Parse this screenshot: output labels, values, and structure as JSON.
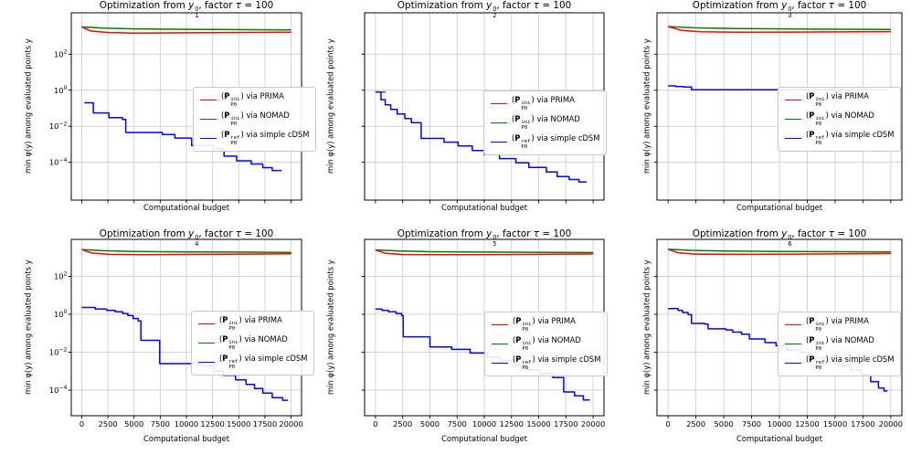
{
  "figure": {
    "legend": {
      "open": "(",
      "p": "P",
      "sub": "P0",
      "entries": [
        {
          "name": "PRIMA",
          "color": "#ff0000",
          "sup": "ini",
          "rest": ") via PRIMA"
        },
        {
          "name": "NOMAD",
          "color": "#007d00",
          "sup": "ini",
          "rest": ") via NOMAD"
        },
        {
          "name": "simple cDSM",
          "color": "#0000ff",
          "sup": "ref",
          "rest": ") via simple cDSM"
        }
      ]
    }
  },
  "chart_data": [
    {
      "type": "line",
      "title": {
        "prefix": "Optimization from ",
        "var": "y",
        "sup": "0",
        "sub": "1",
        "mid": ", factor ",
        "tau": "τ",
        "eq": " = 100"
      },
      "xlabel": "Computational budget",
      "ylabel": "min φ(y) among evaluated points y",
      "x_ticks": [
        0,
        2500,
        5000,
        7500,
        10000,
        12500,
        15000,
        17500,
        20000
      ],
      "x_tick_labels_visible": false,
      "y_scale": "log",
      "y_tick_exponents": [
        2,
        0,
        -2,
        -4
      ],
      "y_tick_labels_visible": true,
      "xlim": [
        -1000,
        21000
      ],
      "grid": true,
      "legend_position": "center right",
      "series": [
        {
          "name": "(P_P0^ini) via NOMAD",
          "color": "#007d00",
          "step": false,
          "points": [
            [
              0,
              3300
            ],
            [
              2000,
              2800
            ],
            [
              5000,
              2550
            ],
            [
              10000,
              2400
            ],
            [
              20000,
              2250
            ]
          ]
        },
        {
          "name": "(P_P0^ini) via PRIMA",
          "color": "#ff0000",
          "step": false,
          "points": [
            [
              0,
              3300
            ],
            [
              800,
              2000
            ],
            [
              2500,
              1600
            ],
            [
              5000,
              1500
            ],
            [
              10000,
              1550
            ],
            [
              20000,
              1650
            ]
          ]
        },
        {
          "name": "(P_P0^ref) via simple cDSM",
          "color": "#0000ff",
          "step": true,
          "points": [
            [
              250,
              0.2
            ],
            [
              1100,
              0.055
            ],
            [
              2600,
              0.03
            ],
            [
              3900,
              0.024
            ],
            [
              4200,
              0.0045
            ],
            [
              7700,
              0.0035
            ],
            [
              8900,
              0.0022
            ],
            [
              10500,
              0.00085
            ],
            [
              12600,
              0.00055
            ],
            [
              13600,
              0.00022
            ],
            [
              14800,
              0.00012
            ],
            [
              16200,
              8e-05
            ],
            [
              17300,
              5e-05
            ],
            [
              18200,
              3.5e-05
            ],
            [
              19100,
              3.5e-05
            ]
          ]
        }
      ]
    },
    {
      "type": "line",
      "title": {
        "prefix": "Optimization from ",
        "var": "y",
        "sup": "0",
        "sub": "2",
        "mid": ", factor ",
        "tau": "τ",
        "eq": " = 100"
      },
      "xlabel": "Computational budget",
      "ylabel": "min φ(y) among evaluated points y",
      "x_ticks": [
        0,
        2500,
        5000,
        7500,
        10000,
        12500,
        15000,
        17500,
        20000
      ],
      "x_tick_labels_visible": false,
      "y_scale": "log",
      "y_tick_exponents": [
        2,
        0,
        -2,
        -4
      ],
      "y_tick_labels_visible": false,
      "xlim": [
        -1000,
        21000
      ],
      "grid": true,
      "legend_position": "center right",
      "series": [
        {
          "name": "(P_P0^ini) via NOMAD",
          "color": "#007d00",
          "step": false,
          "points": [
            [
              0,
              0.8
            ],
            [
              400,
              0.8
            ]
          ]
        },
        {
          "name": "(P_P0^ini) via PRIMA",
          "color": "#ff0000",
          "step": false,
          "points": [
            [
              0,
              0.8
            ],
            [
              900,
              0.8
            ]
          ]
        },
        {
          "name": "(P_P0^ref) via simple cDSM",
          "color": "#0000ff",
          "step": true,
          "points": [
            [
              0,
              0.8
            ],
            [
              500,
              0.3
            ],
            [
              900,
              0.155
            ],
            [
              1400,
              0.086
            ],
            [
              2000,
              0.048
            ],
            [
              2700,
              0.027
            ],
            [
              3300,
              0.016
            ],
            [
              4200,
              0.0021
            ],
            [
              6300,
              0.0013
            ],
            [
              7600,
              0.0008
            ],
            [
              8900,
              0.00045
            ],
            [
              10000,
              0.00027
            ],
            [
              11400,
              0.00016
            ],
            [
              12900,
              9.4e-05
            ],
            [
              14100,
              5.2e-05
            ],
            [
              15700,
              2.9e-05
            ],
            [
              16700,
              1.6e-05
            ],
            [
              17800,
              1.1e-05
            ],
            [
              18700,
              8e-06
            ],
            [
              19400,
              8e-06
            ]
          ]
        }
      ]
    },
    {
      "type": "line",
      "title": {
        "prefix": "Optimization from ",
        "var": "y",
        "sup": "0",
        "sub": "3",
        "mid": ", factor ",
        "tau": "τ",
        "eq": " = 100"
      },
      "xlabel": "Computational budget",
      "ylabel": "min φ(y) among evaluated points y",
      "x_ticks": [
        0,
        2500,
        5000,
        7500,
        10000,
        12500,
        15000,
        17500,
        20000
      ],
      "x_tick_labels_visible": false,
      "y_scale": "log",
      "y_tick_exponents": [
        2,
        0,
        -2,
        -4
      ],
      "y_tick_labels_visible": false,
      "xlim": [
        -1000,
        21000
      ],
      "grid": true,
      "legend_position": "center right",
      "series": [
        {
          "name": "(P_P0^ini) via NOMAD",
          "color": "#007d00",
          "step": false,
          "points": [
            [
              0,
              3400
            ],
            [
              2500,
              2900
            ],
            [
              6000,
              2650
            ],
            [
              12000,
              2500
            ],
            [
              20000,
              2350
            ]
          ]
        },
        {
          "name": "(P_P0^ini) via PRIMA",
          "color": "#ff0000",
          "step": false,
          "points": [
            [
              0,
              3400
            ],
            [
              1200,
              2100
            ],
            [
              3000,
              1750
            ],
            [
              6000,
              1650
            ],
            [
              12000,
              1700
            ],
            [
              20000,
              1800
            ]
          ]
        },
        {
          "name": "(P_P0^ref) via simple cDSM",
          "color": "#0000ff",
          "step": true,
          "points": [
            [
              0,
              1.75
            ],
            [
              700,
              1.6
            ],
            [
              1400,
              1.5
            ],
            [
              2100,
              1.05
            ],
            [
              19800,
              1.05
            ]
          ]
        }
      ]
    },
    {
      "type": "line",
      "title": {
        "prefix": "Optimization from ",
        "var": "y",
        "sup": "0",
        "sub": "4",
        "mid": ", factor ",
        "tau": "τ",
        "eq": " = 100"
      },
      "xlabel": "Computational budget",
      "ylabel": "min φ(y) among evaluated points y",
      "x_ticks": [
        0,
        2500,
        5000,
        7500,
        10000,
        12500,
        15000,
        17500,
        20000
      ],
      "x_tick_labels_visible": true,
      "y_scale": "log",
      "y_tick_exponents": [
        2,
        0,
        -2,
        -4
      ],
      "y_tick_labels_visible": true,
      "xlim": [
        -1000,
        21000
      ],
      "grid": true,
      "legend_position": "center right",
      "series": [
        {
          "name": "(P_P0^ini) via NOMAD",
          "color": "#007d00",
          "step": false,
          "points": [
            [
              0,
              2600
            ],
            [
              2000,
              2250
            ],
            [
              5000,
              2050
            ],
            [
              10000,
              1950
            ],
            [
              20000,
              1850
            ]
          ]
        },
        {
          "name": "(P_P0^ini) via PRIMA",
          "color": "#ff0000",
          "step": false,
          "points": [
            [
              0,
              2600
            ],
            [
              900,
              1700
            ],
            [
              2500,
              1450
            ],
            [
              6000,
              1400
            ],
            [
              12000,
              1450
            ],
            [
              20000,
              1550
            ]
          ]
        },
        {
          "name": "(P_P0^ref) via simple cDSM",
          "color": "#0000ff",
          "step": true,
          "points": [
            [
              0,
              2.3
            ],
            [
              1300,
              1.9
            ],
            [
              2400,
              1.6
            ],
            [
              3200,
              1.35
            ],
            [
              3900,
              1.1
            ],
            [
              4400,
              0.85
            ],
            [
              4900,
              0.6
            ],
            [
              5400,
              0.45
            ],
            [
              5650,
              0.042
            ],
            [
              7450,
              0.0025
            ],
            [
              11500,
              0.0019
            ],
            [
              12600,
              0.001
            ],
            [
              13500,
              0.0006
            ],
            [
              14700,
              0.00035
            ],
            [
              15700,
              0.0002
            ],
            [
              16500,
              0.00012
            ],
            [
              17300,
              7e-05
            ],
            [
              18200,
              4e-05
            ],
            [
              19200,
              2.9e-05
            ],
            [
              19700,
              2.9e-05
            ]
          ]
        }
      ]
    },
    {
      "type": "line",
      "title": {
        "prefix": "Optimization from ",
        "var": "y",
        "sup": "0",
        "sub": "5",
        "mid": ", factor ",
        "tau": "τ",
        "eq": " = 100"
      },
      "xlabel": "Computational budget",
      "ylabel": "min φ(y) among evaluated points y",
      "x_ticks": [
        0,
        2500,
        5000,
        7500,
        10000,
        12500,
        15000,
        17500,
        20000
      ],
      "x_tick_labels_visible": true,
      "y_scale": "log",
      "y_tick_exponents": [
        2,
        0,
        -2,
        -4
      ],
      "y_tick_labels_visible": false,
      "xlim": [
        -1000,
        21000
      ],
      "grid": true,
      "legend_position": "center right",
      "series": [
        {
          "name": "(P_P0^ini) via NOMAD",
          "color": "#007d00",
          "step": false,
          "points": [
            [
              0,
              2500
            ],
            [
              2000,
              2200
            ],
            [
              5000,
              2000
            ],
            [
              10000,
              1900
            ],
            [
              20000,
              1800
            ]
          ]
        },
        {
          "name": "(P_P0^ini) via PRIMA",
          "color": "#ff0000",
          "step": false,
          "points": [
            [
              0,
              2500
            ],
            [
              900,
              1650
            ],
            [
              2500,
              1420
            ],
            [
              6000,
              1380
            ],
            [
              12000,
              1420
            ],
            [
              20000,
              1520
            ]
          ]
        },
        {
          "name": "(P_P0^ref) via simple cDSM",
          "color": "#0000ff",
          "step": true,
          "points": [
            [
              0,
              1.9
            ],
            [
              600,
              1.6
            ],
            [
              1200,
              1.35
            ],
            [
              1900,
              1.1
            ],
            [
              2400,
              0.85
            ],
            [
              2550,
              0.065
            ],
            [
              5000,
              0.019
            ],
            [
              7000,
              0.014
            ],
            [
              8700,
              0.009
            ],
            [
              10300,
              0.0056
            ],
            [
              11500,
              0.0035
            ],
            [
              12800,
              0.0021
            ],
            [
              13800,
              0.0012
            ],
            [
              15100,
              0.00075
            ],
            [
              16300,
              0.00046
            ],
            [
              17300,
              8e-05
            ],
            [
              18300,
              5e-05
            ],
            [
              19100,
              3e-05
            ],
            [
              19700,
              3e-05
            ]
          ]
        }
      ]
    },
    {
      "type": "line",
      "title": {
        "prefix": "Optimization from ",
        "var": "y",
        "sup": "0",
        "sub": "6",
        "mid": ", factor ",
        "tau": "τ",
        "eq": " = 100"
      },
      "xlabel": "Computational budget",
      "ylabel": "min φ(y) among evaluated points y",
      "x_ticks": [
        0,
        2500,
        5000,
        7500,
        10000,
        12500,
        15000,
        17500,
        20000
      ],
      "x_tick_labels_visible": true,
      "y_scale": "log",
      "y_tick_exponents": [
        2,
        0,
        -2,
        -4
      ],
      "y_tick_labels_visible": false,
      "xlim": [
        -1000,
        21000
      ],
      "grid": true,
      "legend_position": "center right",
      "series": [
        {
          "name": "(P_P0^ini) via NOMAD",
          "color": "#007d00",
          "step": false,
          "points": [
            [
              0,
              2700
            ],
            [
              2000,
              2350
            ],
            [
              5000,
              2150
            ],
            [
              10000,
              2050
            ],
            [
              20000,
              1950
            ]
          ]
        },
        {
          "name": "(P_P0^ini) via PRIMA",
          "color": "#ff0000",
          "step": false,
          "points": [
            [
              0,
              2700
            ],
            [
              900,
              1750
            ],
            [
              2500,
              1500
            ],
            [
              6000,
              1450
            ],
            [
              12000,
              1500
            ],
            [
              20000,
              1600
            ]
          ]
        },
        {
          "name": "(P_P0^ref) via simple cDSM",
          "color": "#0000ff",
          "step": true,
          "points": [
            [
              0,
              2.0
            ],
            [
              900,
              1.6
            ],
            [
              1300,
              1.25
            ],
            [
              1800,
              0.95
            ],
            [
              2100,
              0.33
            ],
            [
              3300,
              0.3
            ],
            [
              3600,
              0.17
            ],
            [
              5200,
              0.15
            ],
            [
              5800,
              0.115
            ],
            [
              6600,
              0.09
            ],
            [
              7300,
              0.05
            ],
            [
              8700,
              0.032
            ],
            [
              9700,
              0.022
            ],
            [
              10700,
              0.013
            ],
            [
              11900,
              0.0095
            ],
            [
              12600,
              0.005
            ],
            [
              14100,
              0.0032
            ],
            [
              15400,
              0.0019
            ],
            [
              16400,
              0.0011
            ],
            [
              17400,
              0.00065
            ],
            [
              18200,
              0.00028
            ],
            [
              18900,
              0.00013
            ],
            [
              19400,
              9e-05
            ],
            [
              19700,
              9e-05
            ]
          ]
        }
      ]
    }
  ]
}
